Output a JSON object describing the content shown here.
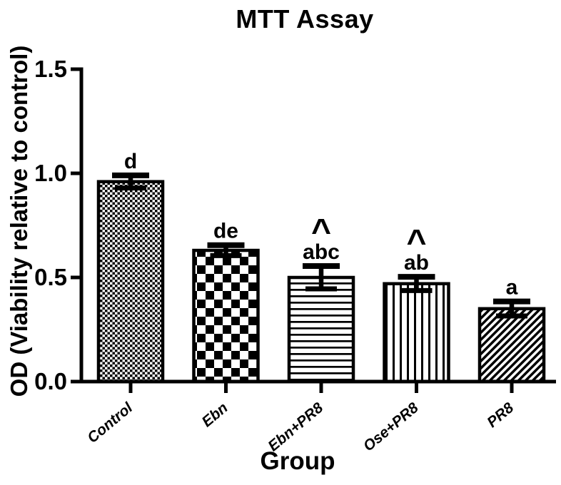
{
  "figure": {
    "background": "#ffffff",
    "ink_color": "#000000"
  },
  "chart_data": {
    "type": "bar",
    "title": "MTT Assay",
    "xlabel": "Group",
    "ylabel": "OD (Viability relative to control)",
    "categories": [
      "Control",
      "Ebn",
      "Ebn+PR8",
      "Ose+PR8",
      "PR8"
    ],
    "values": [
      0.96,
      0.63,
      0.5,
      0.47,
      0.35
    ],
    "errors": [
      0.03,
      0.025,
      0.055,
      0.033,
      0.035
    ],
    "significance_labels": [
      [
        "d"
      ],
      [
        "de"
      ],
      [
        "^",
        "abc"
      ],
      [
        "^",
        "ab"
      ],
      [
        "a"
      ]
    ],
    "bar_patterns": [
      "fine-checkerboard",
      "checkerboard",
      "horizontal-lines",
      "vertical-lines",
      "diagonal-lines"
    ],
    "ylim": [
      0,
      1.5
    ],
    "yticks": [
      0,
      0.5,
      1,
      1.5
    ],
    "ytick_labels": [
      "0.0",
      "0.5",
      "1.0",
      "1.5"
    ],
    "grid": false,
    "legend": "none",
    "bar_fill_color": "#000000",
    "bar_outline_color": "#000000",
    "background": "#ffffff"
  }
}
